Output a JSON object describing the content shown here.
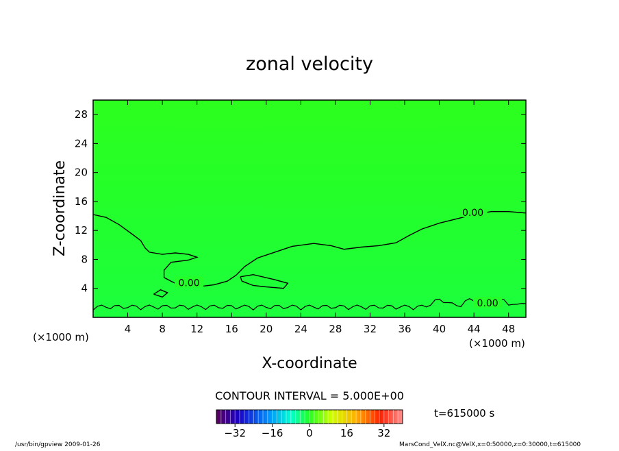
{
  "chart_data": {
    "type": "heatmap",
    "title": "zonal velocity",
    "xlabel": "X-coordinate",
    "ylabel": "Z-coordinate",
    "x_unit_note": "(×1000 m)",
    "x_unit_note_right": "(×1000 m)",
    "xlim": [
      0,
      50
    ],
    "ylim": [
      0,
      30
    ],
    "x_ticks": [
      4,
      8,
      12,
      16,
      20,
      24,
      28,
      32,
      36,
      40,
      44,
      48
    ],
    "y_ticks": [
      4,
      8,
      12,
      16,
      20,
      24,
      28
    ],
    "contour_interval_label": "CONTOUR INTERVAL = 5.000E+00",
    "contour_labels": [
      "0.00",
      "0.00",
      "0.00"
    ],
    "zero_contour": [
      [
        0,
        14.2
      ],
      [
        1.5,
        13.8
      ],
      [
        3,
        12.8
      ],
      [
        4.5,
        11.5
      ],
      [
        5.5,
        10.6
      ],
      [
        6,
        9.6
      ],
      [
        6.5,
        9.0
      ],
      [
        8,
        8.7
      ],
      [
        9.5,
        8.9
      ],
      [
        11,
        8.7
      ],
      [
        12,
        8.3
      ],
      [
        11,
        7.9
      ],
      [
        9,
        7.6
      ],
      [
        8.2,
        6.5
      ],
      [
        8.2,
        5.5
      ],
      [
        9,
        5.0
      ],
      [
        10,
        4.4
      ],
      [
        12,
        4.2
      ],
      [
        14,
        4.5
      ],
      [
        15.5,
        5.0
      ],
      [
        16.5,
        5.8
      ],
      [
        17.5,
        7.0
      ],
      [
        19,
        8.2
      ],
      [
        21,
        9.0
      ],
      [
        23,
        9.8
      ],
      [
        25.5,
        10.2
      ],
      [
        27.5,
        9.9
      ],
      [
        29,
        9.4
      ],
      [
        31,
        9.7
      ],
      [
        33,
        9.9
      ],
      [
        35,
        10.3
      ],
      [
        36.5,
        11.3
      ],
      [
        38,
        12.2
      ],
      [
        40,
        13.0
      ],
      [
        42,
        13.6
      ],
      [
        44,
        14.2
      ],
      [
        46,
        14.6
      ],
      [
        48,
        14.6
      ],
      [
        50,
        14.4
      ]
    ],
    "small_contours": [
      [
        [
          17,
          5.6
        ],
        [
          18.5,
          5.9
        ],
        [
          21,
          5.2
        ],
        [
          22.5,
          4.7
        ],
        [
          22,
          4.0
        ],
        [
          20,
          4.2
        ],
        [
          18.5,
          4.4
        ],
        [
          17.2,
          5.0
        ],
        [
          17,
          5.6
        ]
      ],
      [
        [
          7,
          3.2
        ],
        [
          8,
          2.8
        ],
        [
          8.6,
          3.4
        ],
        [
          7.8,
          3.8
        ],
        [
          7,
          3.2
        ]
      ]
    ],
    "colorbar": {
      "range": [
        -40,
        40
      ],
      "ticks": [
        -32,
        -16,
        0,
        16,
        32
      ],
      "tick_labels": [
        "−32",
        "−16",
        "0",
        "16",
        "32"
      ]
    },
    "time_label": "t=615000 s",
    "colors": {
      "field_green": "#22ff22",
      "frame": "#000000"
    }
  },
  "footer": {
    "left": "/usr/bin/gpview  2009-01-26",
    "right": "MarsCond_VelX.nc@VelX,x=0:50000,z=0:30000,t=615000"
  }
}
